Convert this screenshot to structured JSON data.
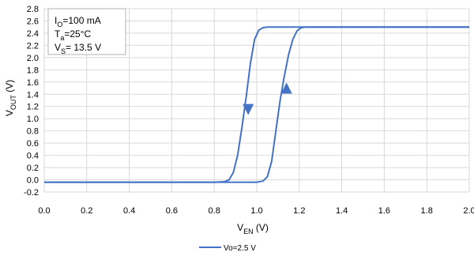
{
  "chart_data": {
    "type": "line",
    "xlabel": {
      "main": "V",
      "sub": "EN",
      "unit": " (V)"
    },
    "ylabel": {
      "main": "V",
      "sub": "OUT",
      "unit": " (V)"
    },
    "xlim": [
      0,
      2.0
    ],
    "ylim": [
      -0.2,
      2.8
    ],
    "x_ticks": [
      0.0,
      0.2,
      0.4,
      0.6,
      0.8,
      1.0,
      1.2,
      1.4,
      1.6,
      1.8,
      2.0
    ],
    "y_ticks": [
      -0.2,
      0.0,
      0.2,
      0.4,
      0.6,
      0.8,
      1.0,
      1.2,
      1.4,
      1.6,
      1.8,
      2.0,
      2.2,
      2.4,
      2.6,
      2.8
    ],
    "grid": true,
    "legend_position": "bottom-center",
    "conditions": [
      {
        "main": "I",
        "sub": "O",
        "rest": "=100 mA"
      },
      {
        "main": "T",
        "sub": "a",
        "rest": "=25°C"
      },
      {
        "main": "V",
        "sub": "S",
        "rest": "= 13.5 V"
      }
    ],
    "series": [
      {
        "name": "Vo=2.5 V",
        "color": "#4472C4",
        "rising": {
          "x": [
            0.0,
            0.5,
            0.9,
            1.0,
            1.03,
            1.05,
            1.07,
            1.09,
            1.11,
            1.13,
            1.15,
            1.17,
            1.19,
            1.21,
            1.23,
            1.3,
            1.6,
            2.0
          ],
          "y": [
            -0.04,
            -0.04,
            -0.04,
            -0.04,
            -0.02,
            0.05,
            0.3,
            0.8,
            1.3,
            1.7,
            2.05,
            2.3,
            2.44,
            2.49,
            2.5,
            2.5,
            2.5,
            2.5
          ]
        },
        "falling": {
          "x": [
            2.0,
            1.6,
            1.2,
            1.1,
            1.05,
            1.03,
            1.01,
            0.99,
            0.97,
            0.95,
            0.93,
            0.91,
            0.89,
            0.87,
            0.85,
            0.8,
            0.5,
            0.0
          ],
          "y": [
            2.5,
            2.5,
            2.5,
            2.5,
            2.5,
            2.49,
            2.45,
            2.3,
            1.9,
            1.35,
            0.85,
            0.4,
            0.12,
            0.0,
            -0.03,
            -0.04,
            -0.04,
            -0.04
          ]
        },
        "arrows": [
          {
            "x": 0.96,
            "y": 1.15,
            "direction": "down"
          },
          {
            "x": 1.14,
            "y": 1.5,
            "direction": "up"
          }
        ]
      }
    ]
  }
}
